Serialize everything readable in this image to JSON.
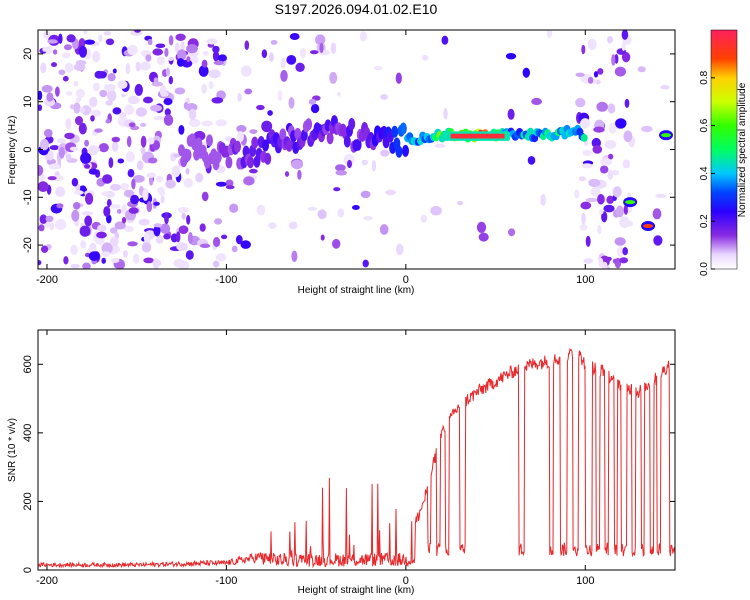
{
  "title": "S197.2026.094.01.02.E10",
  "chart_data": [
    {
      "type": "heatmap",
      "title": "S197.2026.094.01.02.E10",
      "xlabel": "Height of straight line (km)",
      "ylabel": "Frequency (Hz)",
      "xlim": [
        -205,
        150
      ],
      "ylim": [
        -25,
        25
      ],
      "xticks": [
        -200,
        -100,
        0,
        100
      ],
      "yticks": [
        -20,
        -10,
        0,
        10,
        20
      ],
      "colorbar": {
        "label": "Normalized spectral amplitude",
        "range": [
          0.0,
          1.0
        ],
        "ticks": [
          0.0,
          0.2,
          0.4,
          0.6,
          0.8
        ]
      },
      "signal_track": {
        "description_points_x": [
          -120,
          -100,
          -80,
          -60,
          -40,
          -20,
          0,
          20,
          40,
          60,
          80,
          95,
          125,
          135,
          143
        ],
        "frequency_hz": [
          0,
          -1,
          0,
          3,
          4,
          2,
          2,
          3,
          3,
          3,
          3,
          4,
          -11,
          -16,
          3
        ],
        "amplitude": [
          0.1,
          0.15,
          0.2,
          0.2,
          0.2,
          0.2,
          0.35,
          0.6,
          0.95,
          0.4,
          0.5,
          0.45,
          0.55,
          0.9,
          0.6
        ]
      }
    },
    {
      "type": "line",
      "xlabel": "Height of straight line (km)",
      "ylabel": "SNR (10 * v/v)",
      "xlim": [
        -205,
        150
      ],
      "ylim": [
        0,
        700
      ],
      "xticks": [
        -200,
        -100,
        0,
        100
      ],
      "yticks": [
        0,
        200,
        400,
        600
      ],
      "series": [
        {
          "name": "SNR",
          "color": "#e8282b",
          "x": [
            -205,
            -150,
            -110,
            -100,
            -80,
            -60,
            -40,
            -20,
            0,
            10,
            20,
            30,
            40,
            50,
            60,
            65,
            70,
            80,
            90,
            95,
            100,
            110,
            120,
            130,
            140,
            150
          ],
          "y": [
            15,
            15,
            20,
            20,
            40,
            60,
            80,
            90,
            60,
            200,
            400,
            480,
            520,
            550,
            580,
            590,
            600,
            610,
            620,
            640,
            600,
            580,
            540,
            520,
            560,
            620
          ]
        }
      ]
    }
  ]
}
